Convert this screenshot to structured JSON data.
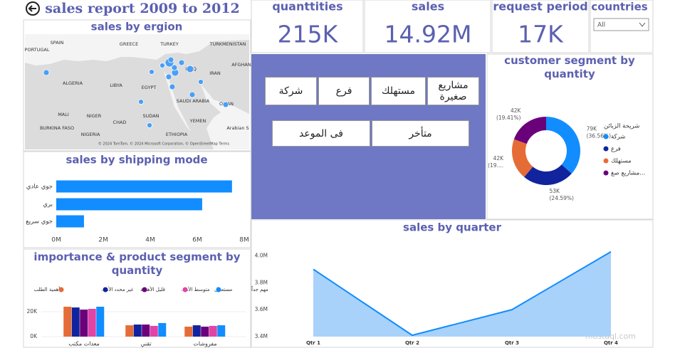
{
  "header": {
    "title": "sales report 2009 to 2012"
  },
  "kpis": [
    {
      "label": "quanttities",
      "value": "215K"
    },
    {
      "label": "sales",
      "value": "14.92M"
    },
    {
      "label": "request period",
      "value": "17K"
    }
  ],
  "countries_slicer": {
    "label": "countries",
    "selected": "All"
  },
  "segment_buttons": [
    "شركة",
    "فرع",
    "مستهلك",
    "مشاريع صغيرة"
  ],
  "delivery_buttons": [
    "فى الموعد",
    "متأخر"
  ],
  "map": {
    "title": "sales by ergion",
    "labels": [
      "PORTUGAL",
      "SPAIN",
      "GREECE",
      "TURKEY",
      "TURKMENISTAN",
      "ALGERIA",
      "LIBYA",
      "EGYPT",
      "IRAQ",
      "IRAN",
      "AFGHAN",
      "MALI",
      "NIGER",
      "CHAD",
      "SUDAN",
      "SAUDI ARABIA",
      "OMAN",
      "YEMEN",
      "BURKINA FASO",
      "NIGERIA",
      "ETHIOPIA",
      "Arabian S"
    ],
    "attribution": "© 2024 TomTom, © 2024 Microsoft Corporation, © OpenStreetMap  Terms"
  },
  "watermark": "mostaql.com",
  "chart_data": [
    {
      "type": "hbar",
      "title": "sales by shipping mode",
      "categories": [
        "جوي عادي",
        "بري",
        "جوي سريع"
      ],
      "values": [
        7.48,
        6.21,
        1.18
      ],
      "color": "#118dff",
      "xlim": [
        0,
        8
      ],
      "xticks": [
        {
          "value": 0,
          "label": "0M"
        },
        {
          "value": 2,
          "label": "2M"
        },
        {
          "value": 4,
          "label": "4M"
        },
        {
          "value": 6,
          "label": "6M"
        },
        {
          "value": 8,
          "label": "8M"
        }
      ]
    },
    {
      "type": "donut",
      "title": "customer segment by quantity",
      "legend_title": "شريحة الزبائن",
      "categories": [
        "شركة",
        "فرع",
        "مستهلك",
        "مشاريع صغ..."
      ],
      "colors": [
        "#118dff",
        "#12239e",
        "#e66c37",
        "#6b007b"
      ],
      "values": [
        79,
        53,
        42,
        42
      ],
      "value_labels": [
        "79K",
        "53K",
        "42K",
        "42K"
      ],
      "percent_labels": [
        "(36.56%)",
        "(24.59%)",
        "(19....",
        "(19.41%)"
      ]
    },
    {
      "type": "area",
      "title": "sales by quarter",
      "categories": [
        "Qtr 1",
        "Qtr 2",
        "Qtr 3",
        "Qtr 4"
      ],
      "values": [
        3.9,
        3.41,
        3.6,
        4.03
      ],
      "color": "#118dff",
      "ylim": [
        3.4,
        4.05
      ],
      "yticks": [
        {
          "value": 3.4,
          "label": "3.4M"
        },
        {
          "value": 3.6,
          "label": "3.6M"
        },
        {
          "value": 3.8,
          "label": "3.8M"
        },
        {
          "value": 4.0,
          "label": "4.0M"
        }
      ]
    },
    {
      "type": "grouped_bar",
      "title": "importance & product segment by quantity",
      "legend_title": "أهمية الطلب",
      "categories": [
        "معدات مكتب",
        "تقني",
        "مفروشات"
      ],
      "series": [
        {
          "name": "غير محدد الأه...",
          "color": "#e66c37",
          "values": [
            24,
            9.1,
            8
          ]
        },
        {
          "name": "قليل الأهمية",
          "color": "#12239e",
          "values": [
            23.4,
            9.7,
            9.1
          ]
        },
        {
          "name": "متوسط الأه...",
          "color": "#6b007b",
          "values": [
            21.7,
            9.7,
            8
          ]
        },
        {
          "name": "مستعجل",
          "color": "#e044a7",
          "values": [
            22.3,
            8.6,
            8.6
          ]
        },
        {
          "name": "مهم جداً",
          "color": "#118dff",
          "values": [
            24,
            10.9,
            9.1
          ]
        }
      ],
      "ylim": [
        0,
        28
      ],
      "yticks": [
        {
          "value": 0,
          "label": "0K"
        },
        {
          "value": 20,
          "label": "20K"
        }
      ]
    }
  ]
}
